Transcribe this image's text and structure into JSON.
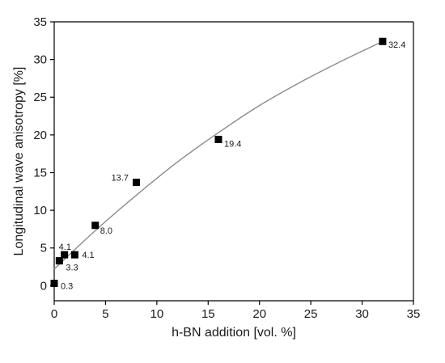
{
  "chart_data": {
    "type": "scatter",
    "title": "",
    "xlabel": "h-BN addition [vol. %]",
    "ylabel": "Longitudinal wave anisotropy [%]",
    "xlim": [
      0,
      35
    ],
    "ylim": [
      -2,
      35
    ],
    "xticks": [
      0,
      5,
      10,
      15,
      20,
      25,
      30,
      35
    ],
    "yticks": [
      0,
      5,
      10,
      15,
      20,
      25,
      30,
      35
    ],
    "grid": false,
    "legend": "none",
    "marker": "filled-square",
    "colors": {
      "marker": "#000000",
      "fit_line": "#8c8c8c",
      "axes": "#000000"
    },
    "series": [
      {
        "points": [
          {
            "x": 0,
            "y": 0.3,
            "label": "0.3"
          },
          {
            "x": 0.5,
            "y": 3.3,
            "label": "3.3"
          },
          {
            "x": 1,
            "y": 4.1,
            "label": "4.1"
          },
          {
            "x": 2,
            "y": 4.1,
            "label": "4.1"
          },
          {
            "x": 4,
            "y": 8.0,
            "label": "8.0"
          },
          {
            "x": 8,
            "y": 13.7,
            "label": "13.7"
          },
          {
            "x": 16,
            "y": 19.4,
            "label": "19.4"
          },
          {
            "x": 32,
            "y": 32.4,
            "label": "32.4"
          }
        ]
      }
    ],
    "fit_curve": {
      "type": "quadratic",
      "x_range": [
        0,
        32
      ],
      "points": [
        {
          "x": 0,
          "y": 2.2
        },
        {
          "x": 4,
          "y": 7.3
        },
        {
          "x": 8,
          "y": 12.0
        },
        {
          "x": 12,
          "y": 16.4
        },
        {
          "x": 16,
          "y": 20.3
        },
        {
          "x": 20,
          "y": 23.9
        },
        {
          "x": 24,
          "y": 27.0
        },
        {
          "x": 28,
          "y": 29.8
        },
        {
          "x": 32,
          "y": 32.4
        }
      ]
    }
  }
}
